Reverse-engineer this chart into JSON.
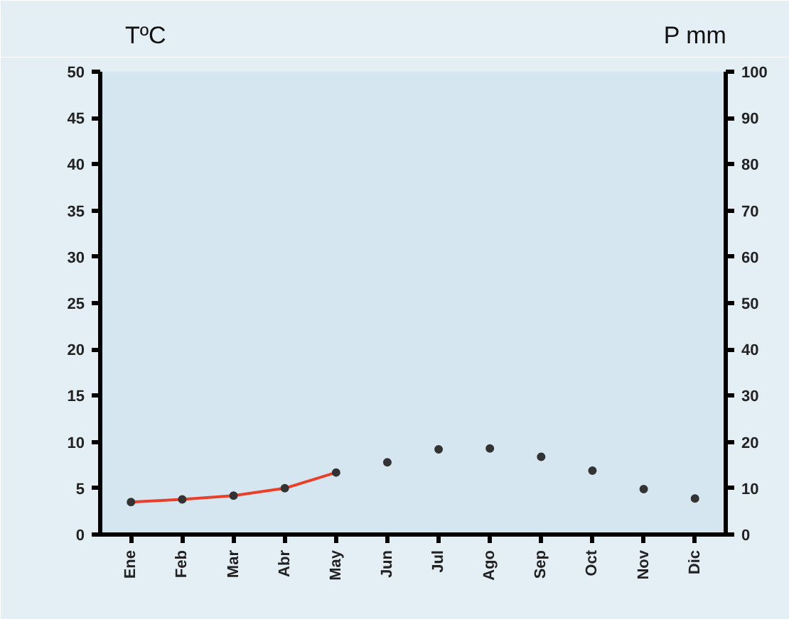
{
  "chart_data": {
    "type": "scatter",
    "ylabel": "TºC",
    "y2label": "P mm",
    "categories": [
      "Ene",
      "Feb",
      "Mar",
      "Abr",
      "May",
      "Jun",
      "Jul",
      "Ago",
      "Sep",
      "Oct",
      "Nov",
      "Dic"
    ],
    "series": [
      {
        "type": "line",
        "color": "#e8402a",
        "values": [
          3.5,
          3.8,
          4.2,
          5.0,
          6.7,
          null,
          null,
          null,
          null,
          null,
          null,
          null
        ]
      },
      {
        "color": "#333333",
        "marker": "circle",
        "values": [
          3.5,
          3.8,
          4.2,
          5.0,
          6.7,
          7.8,
          9.2,
          9.3,
          8.4,
          6.9,
          4.9,
          3.9
        ]
      }
    ],
    "ylim": [
      0,
      50
    ],
    "yticks": [
      0,
      5,
      10,
      15,
      20,
      25,
      30,
      35,
      40,
      45,
      50
    ],
    "y2lim": [
      0,
      100
    ],
    "y2ticks": [
      0,
      10,
      20,
      30,
      40,
      50,
      60,
      70,
      80,
      90,
      100
    ],
    "grid": false
  }
}
